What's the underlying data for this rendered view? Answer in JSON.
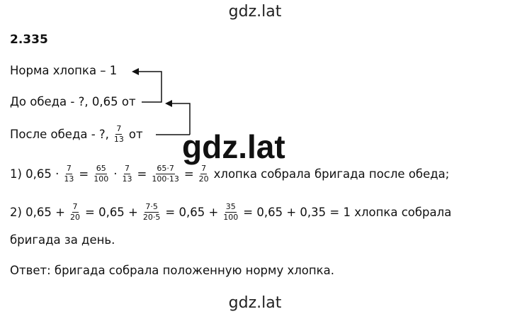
{
  "header": "gdz.lat",
  "number": "2.335",
  "given": {
    "line1": "Норма хлопка – 1",
    "line2": "До обеда - ?, 0,65 от",
    "line3": [
      "После обеда - ?,",
      {
        "num": "7",
        "den": "13"
      },
      "от"
    ]
  },
  "watermark": "gdz.lat",
  "step1": [
    "1) 0,65 ·",
    {
      "num": "7",
      "den": "13"
    },
    "=",
    {
      "num": "65",
      "den": "100"
    },
    "·",
    {
      "num": "7",
      "den": "13"
    },
    "=",
    {
      "num": "65·7",
      "den": "100·13"
    },
    "=",
    {
      "num": "7",
      "den": "20"
    },
    "хлопка собрала бригада после обеда;"
  ],
  "step2": [
    "2) 0,65 +",
    {
      "num": "7",
      "den": "20"
    },
    "= 0,65 +",
    {
      "num": "7·5",
      "den": "20·5"
    },
    "= 0,65 +",
    {
      "num": "35",
      "den": "100"
    },
    "= 0,65 + 0,35 = 1 хлопка собрала"
  ],
  "step2_cont": "бригада за день.",
  "answer": "Ответ: бригада собрала положенную норму хлопка.",
  "footer": "gdz.lat"
}
